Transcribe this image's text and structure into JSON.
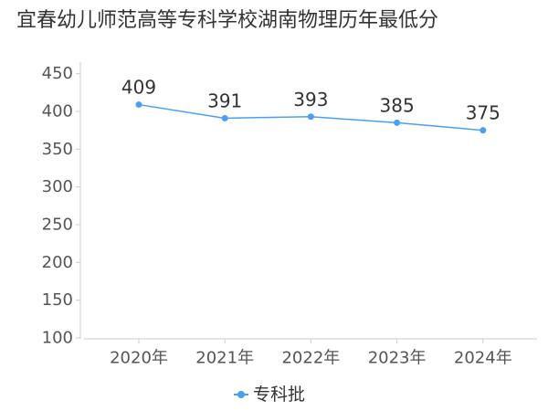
{
  "chart_data": {
    "type": "line",
    "title": "宜春幼儿师范高等专科学校湖南物理历年最低分",
    "categories": [
      "2020年",
      "2021年",
      "2022年",
      "2023年",
      "2024年"
    ],
    "series": [
      {
        "name": "专科批",
        "values": [
          409,
          391,
          393,
          385,
          375
        ],
        "color": "#4a9ff5"
      }
    ],
    "yticks": [
      100,
      150,
      200,
      250,
      300,
      350,
      400,
      450
    ],
    "ylim": [
      100,
      475
    ],
    "xlabel": "",
    "ylabel": "",
    "grid": "none",
    "legend": "bottom-center"
  }
}
